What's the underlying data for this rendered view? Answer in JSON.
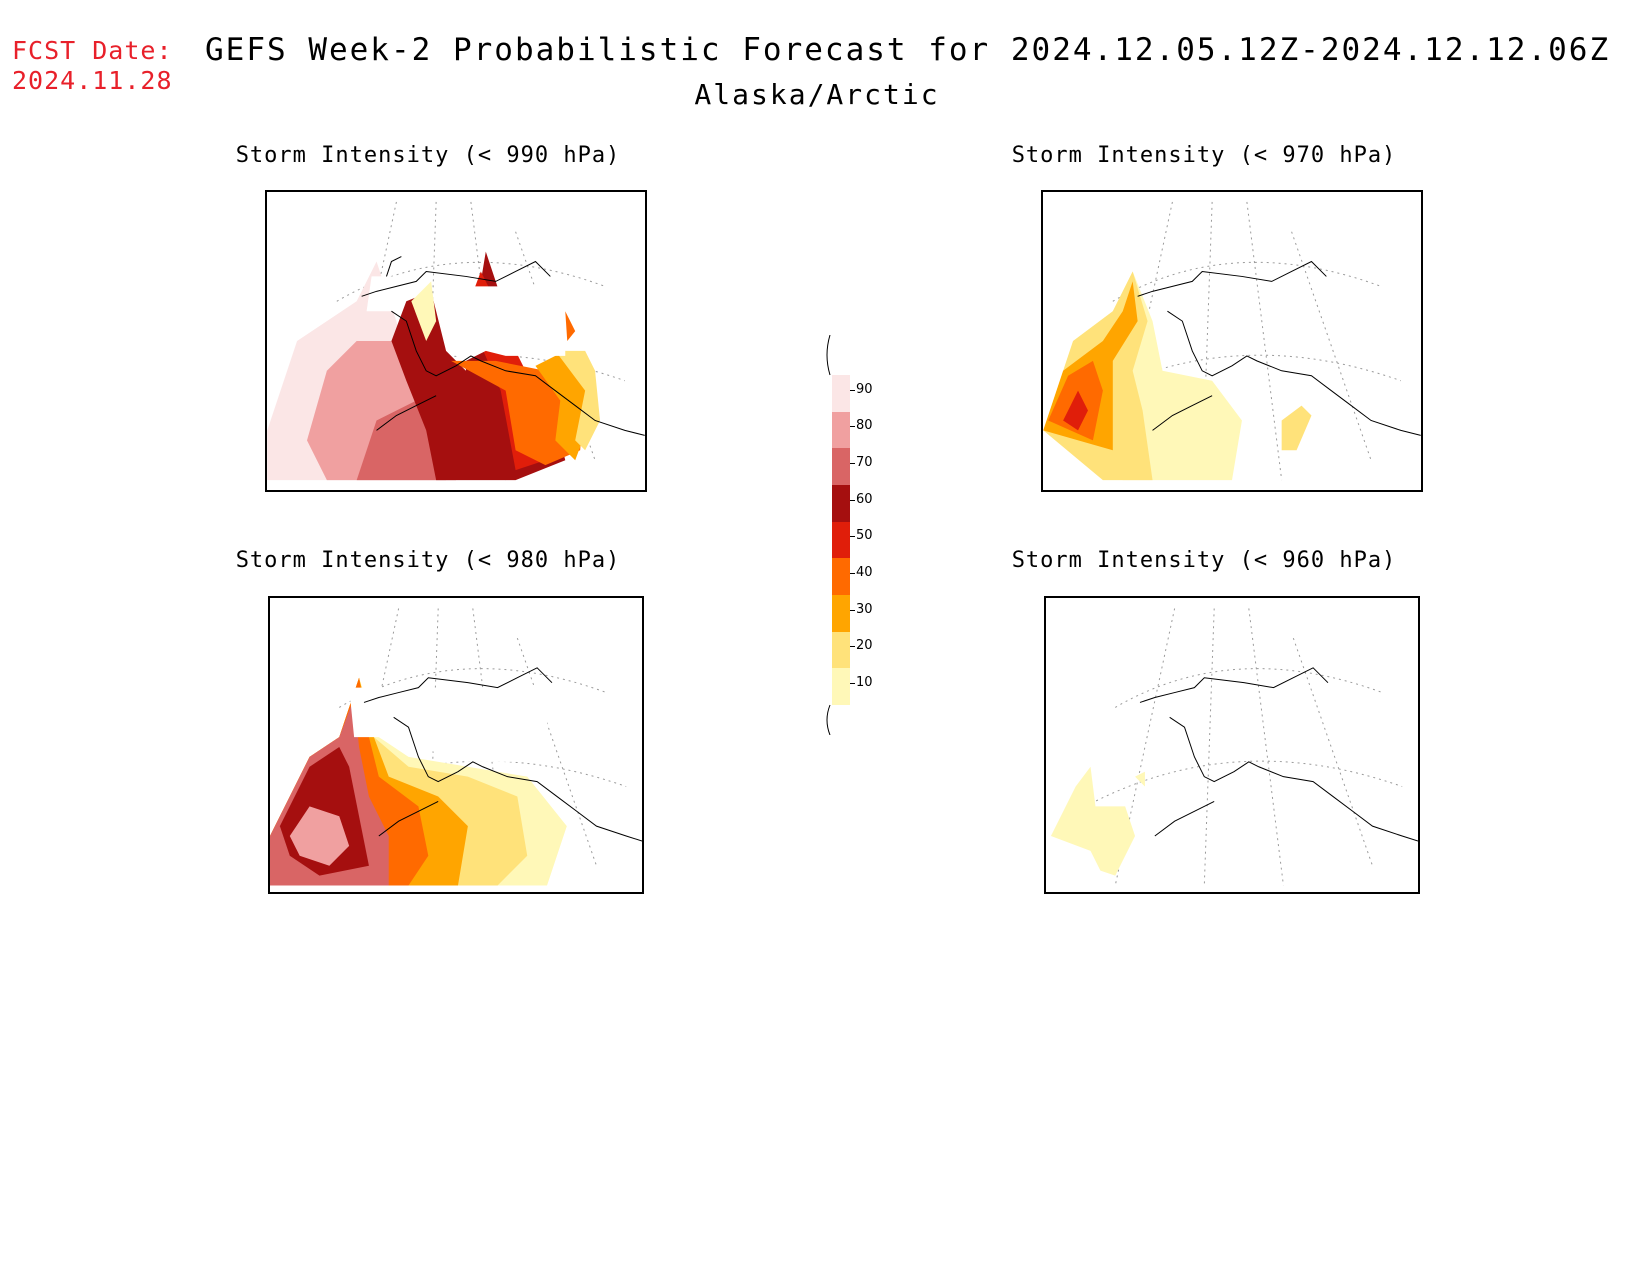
{
  "header": {
    "fcst_label": "FCST Date:",
    "fcst_date": "2024.11.28",
    "title": "GEFS Week-2 Probabilistic Forecast for 2024.12.05.12Z-2024.12.12.06Z",
    "region": "Alaska/Arctic"
  },
  "panels": [
    {
      "title": "Storm Intensity (< 990 hPa)",
      "threshold_hpa": 990
    },
    {
      "title": "Storm Intensity (< 970 hPa)",
      "threshold_hpa": 970
    },
    {
      "title": "Storm Intensity (< 980 hPa)",
      "threshold_hpa": 980
    },
    {
      "title": "Storm Intensity (< 960 hPa)",
      "threshold_hpa": 960
    }
  ],
  "colorbar": {
    "labels": [
      "90",
      "80",
      "70",
      "60",
      "50",
      "40",
      "30",
      "20",
      "10"
    ],
    "colors": [
      "#fbe6e6",
      "#f0a0a0",
      "#d96565",
      "#a50f0f",
      "#e01e0a",
      "#ff6a00",
      "#ffa500",
      "#ffe27a",
      "#fff8b8"
    ]
  }
}
